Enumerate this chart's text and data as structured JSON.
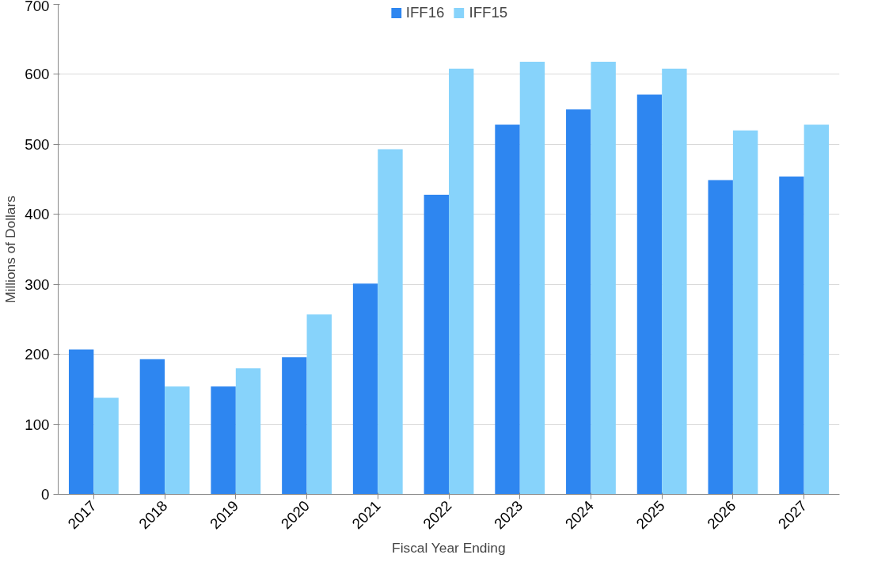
{
  "chart_data": {
    "type": "bar",
    "xlabel": "Fiscal Year Ending",
    "ylabel": "Millions of Dollars",
    "categories": [
      "2017",
      "2018",
      "2019",
      "2020",
      "2021",
      "2022",
      "2023",
      "2024",
      "2025",
      "2026",
      "2027"
    ],
    "series": [
      {
        "name": "IFF16",
        "color": "#2e86f0",
        "values": [
          207,
          193,
          154,
          196,
          301,
          428,
          528,
          550,
          571,
          449,
          454
        ]
      },
      {
        "name": "IFF15",
        "color": "#87d3fb",
        "values": [
          138,
          154,
          180,
          257,
          493,
          608,
          618,
          618,
          608,
          520,
          528
        ]
      }
    ],
    "ylim": [
      0,
      700
    ],
    "yticks": [
      0,
      100,
      200,
      300,
      400,
      500,
      600,
      700
    ],
    "grid": "y",
    "legend": "top"
  }
}
